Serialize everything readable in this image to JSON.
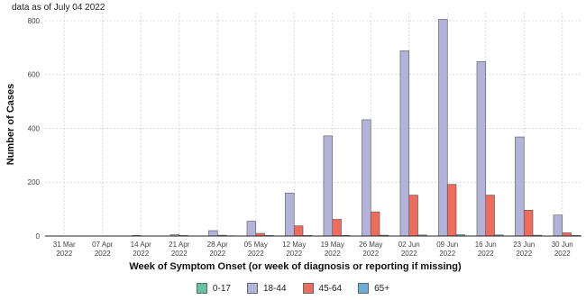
{
  "note": "data as of July 04 2022",
  "chart_data": {
    "type": "bar",
    "xlabel": "Week of Symptom Onset (or week of diagnosis or reporting if missing)",
    "ylabel": "Number of Cases",
    "ylim": [
      0,
      830
    ],
    "yticks": [
      0,
      200,
      400,
      600,
      800
    ],
    "grid": true,
    "legend_position": "bottom",
    "categories": [
      {
        "line1": "31 Mar",
        "line2": "2022"
      },
      {
        "line1": "07 Apr",
        "line2": "2022"
      },
      {
        "line1": "14 Apr",
        "line2": "2022"
      },
      {
        "line1": "21 Apr",
        "line2": "2022"
      },
      {
        "line1": "28 Apr",
        "line2": "2022"
      },
      {
        "line1": "05 May",
        "line2": "2022"
      },
      {
        "line1": "12 May",
        "line2": "2022"
      },
      {
        "line1": "19 May",
        "line2": "2022"
      },
      {
        "line1": "26 May",
        "line2": "2022"
      },
      {
        "line1": "02 Jun",
        "line2": "2022"
      },
      {
        "line1": "09 Jun",
        "line2": "2022"
      },
      {
        "line1": "16 Jun",
        "line2": "2022"
      },
      {
        "line1": "23 Jun",
        "line2": "2022"
      },
      {
        "line1": "30 Jun",
        "line2": "2022"
      }
    ],
    "series": [
      {
        "name": "0-17",
        "color": "#66c2a5",
        "values": [
          0,
          0,
          0,
          0,
          0,
          0,
          0,
          0,
          0,
          0,
          0,
          0,
          0,
          0
        ]
      },
      {
        "name": "18-44",
        "color": "#b3b3d9",
        "values": [
          0,
          0,
          2,
          5,
          20,
          55,
          160,
          372,
          432,
          688,
          805,
          648,
          368,
          78
        ]
      },
      {
        "name": "45-64",
        "color": "#ef6b5b",
        "values": [
          0,
          0,
          0,
          2,
          3,
          10,
          38,
          62,
          90,
          152,
          192,
          152,
          96,
          12
        ]
      },
      {
        "name": "65+",
        "color": "#6baed6",
        "values": [
          0,
          0,
          0,
          0,
          1,
          2,
          2,
          2,
          3,
          4,
          5,
          4,
          3,
          2
        ]
      }
    ]
  }
}
